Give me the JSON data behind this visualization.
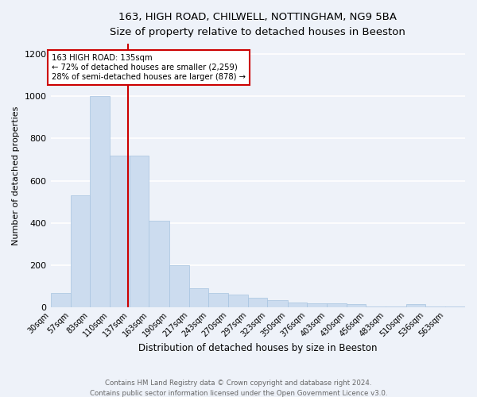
{
  "title1": "163, HIGH ROAD, CHILWELL, NOTTINGHAM, NG9 5BA",
  "title2": "Size of property relative to detached houses in Beeston",
  "xlabel": "Distribution of detached houses by size in Beeston",
  "ylabel": "Number of detached properties",
  "bar_color": "#ccdcef",
  "bar_edgecolor": "#a8c4e0",
  "redline_x": 135,
  "categories": [
    "30sqm",
    "57sqm",
    "83sqm",
    "110sqm",
    "137sqm",
    "163sqm",
    "190sqm",
    "217sqm",
    "243sqm",
    "270sqm",
    "297sqm",
    "323sqm",
    "350sqm",
    "376sqm",
    "403sqm",
    "430sqm",
    "456sqm",
    "483sqm",
    "510sqm",
    "536sqm",
    "563sqm"
  ],
  "bin_edges": [
    30,
    57,
    83,
    110,
    137,
    163,
    190,
    217,
    243,
    270,
    297,
    323,
    350,
    376,
    403,
    430,
    456,
    483,
    510,
    536,
    563,
    590
  ],
  "values": [
    68,
    530,
    1000,
    720,
    720,
    410,
    200,
    90,
    65,
    60,
    45,
    33,
    20,
    18,
    16,
    14,
    3,
    3,
    14,
    3,
    3
  ],
  "ylim": [
    0,
    1250
  ],
  "yticks": [
    0,
    200,
    400,
    600,
    800,
    1000,
    1200
  ],
  "annotation_text": "163 HIGH ROAD: 135sqm\n← 72% of detached houses are smaller (2,259)\n28% of semi-detached houses are larger (878) →",
  "annotation_box_color": "#ffffff",
  "annotation_box_edgecolor": "#cc0000",
  "footer1": "Contains HM Land Registry data © Crown copyright and database right 2024.",
  "footer2": "Contains public sector information licensed under the Open Government Licence v3.0.",
  "background_color": "#eef2f9",
  "grid_color": "#ffffff"
}
